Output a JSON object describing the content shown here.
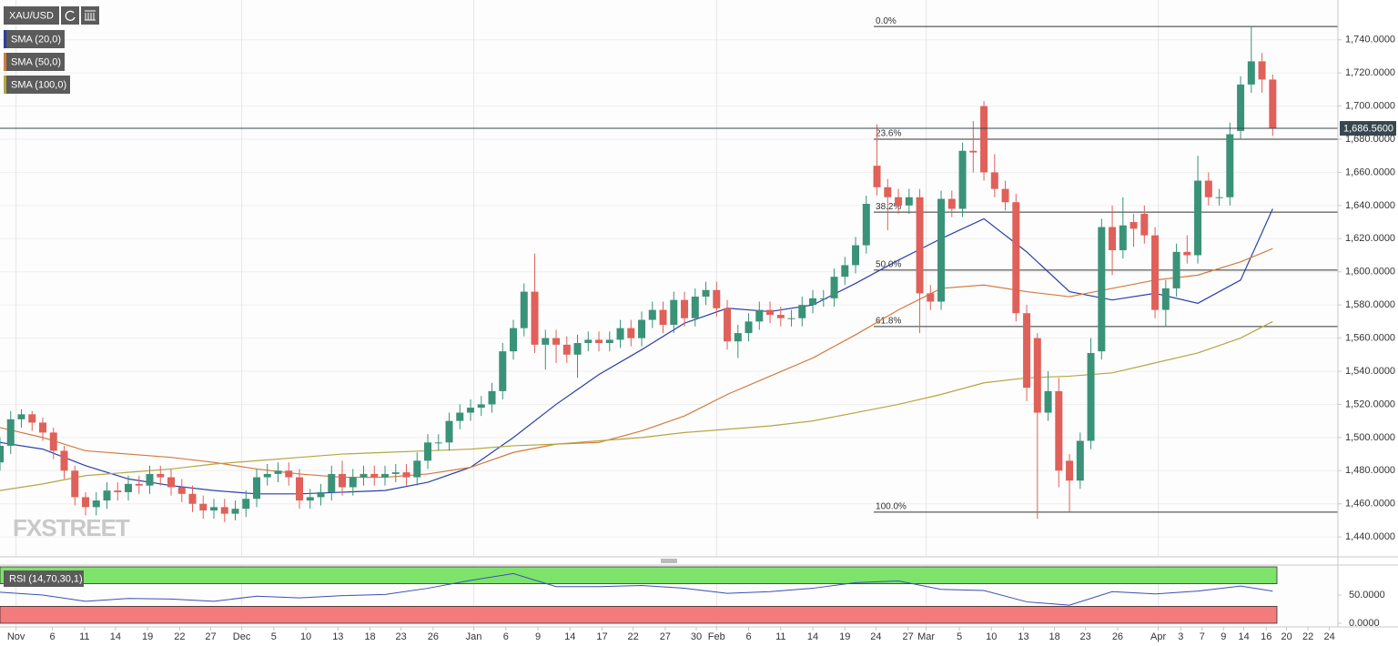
{
  "chart_data": {
    "type": "candlestick",
    "symbol": "XAU/USD",
    "up_color": "#3a9278",
    "down_color": "#e0605a",
    "ohlc": [
      [
        1485,
        1500,
        1480,
        1495
      ],
      [
        1495,
        1516,
        1490,
        1511
      ],
      [
        1511,
        1517,
        1506,
        1514
      ],
      [
        1514,
        1516,
        1504,
        1509
      ],
      [
        1509,
        1512,
        1498,
        1503
      ],
      [
        1503,
        1506,
        1487,
        1492
      ],
      [
        1492,
        1495,
        1475,
        1480
      ],
      [
        1480,
        1483,
        1459,
        1464
      ],
      [
        1464,
        1467,
        1453,
        1458
      ],
      [
        1458,
        1467,
        1453,
        1462
      ],
      [
        1462,
        1473,
        1457,
        1468
      ],
      [
        1468,
        1473,
        1462,
        1467
      ],
      [
        1467,
        1477,
        1462,
        1472
      ],
      [
        1472,
        1477,
        1466,
        1471
      ],
      [
        1471,
        1483,
        1466,
        1478
      ],
      [
        1478,
        1483,
        1471,
        1476
      ],
      [
        1476,
        1481,
        1465,
        1470
      ],
      [
        1470,
        1475,
        1461,
        1466
      ],
      [
        1466,
        1471,
        1455,
        1460
      ],
      [
        1460,
        1465,
        1451,
        1456
      ],
      [
        1456,
        1463,
        1451,
        1458
      ],
      [
        1458,
        1463,
        1449,
        1454
      ],
      [
        1454,
        1462,
        1450,
        1457
      ],
      [
        1457,
        1468,
        1452,
        1463
      ],
      [
        1463,
        1481,
        1458,
        1476
      ],
      [
        1476,
        1484,
        1471,
        1478
      ],
      [
        1478,
        1485,
        1473,
        1480
      ],
      [
        1480,
        1485,
        1471,
        1476
      ],
      [
        1476,
        1481,
        1457,
        1462
      ],
      [
        1462,
        1469,
        1457,
        1464
      ],
      [
        1464,
        1472,
        1459,
        1467
      ],
      [
        1467,
        1483,
        1462,
        1478
      ],
      [
        1478,
        1486,
        1465,
        1470
      ],
      [
        1470,
        1481,
        1465,
        1476
      ],
      [
        1476,
        1483,
        1471,
        1478
      ],
      [
        1478,
        1483,
        1471,
        1476
      ],
      [
        1476,
        1483,
        1471,
        1478
      ],
      [
        1478,
        1484,
        1473,
        1479
      ],
      [
        1479,
        1484,
        1471,
        1476
      ],
      [
        1476,
        1491,
        1471,
        1486
      ],
      [
        1486,
        1502,
        1481,
        1497
      ],
      [
        1497,
        1502,
        1492,
        1497
      ],
      [
        1497,
        1515,
        1492,
        1510
      ],
      [
        1510,
        1520,
        1505,
        1515
      ],
      [
        1515,
        1523,
        1510,
        1518
      ],
      [
        1518,
        1525,
        1513,
        1520
      ],
      [
        1520,
        1533,
        1515,
        1528
      ],
      [
        1528,
        1557,
        1523,
        1552
      ],
      [
        1552,
        1571,
        1547,
        1566
      ],
      [
        1566,
        1593,
        1561,
        1588
      ],
      [
        1588,
        1611,
        1551,
        1556
      ],
      [
        1556,
        1565,
        1541,
        1560
      ],
      [
        1560,
        1565,
        1545,
        1556
      ],
      [
        1556,
        1561,
        1545,
        1550
      ],
      [
        1550,
        1562,
        1536,
        1557
      ],
      [
        1557,
        1564,
        1552,
        1559
      ],
      [
        1559,
        1564,
        1552,
        1557
      ],
      [
        1557,
        1564,
        1552,
        1559
      ],
      [
        1559,
        1571,
        1554,
        1566
      ],
      [
        1566,
        1571,
        1555,
        1560
      ],
      [
        1560,
        1576,
        1555,
        1571
      ],
      [
        1571,
        1582,
        1566,
        1577
      ],
      [
        1577,
        1582,
        1563,
        1568
      ],
      [
        1568,
        1588,
        1563,
        1583
      ],
      [
        1583,
        1588,
        1567,
        1572
      ],
      [
        1572,
        1590,
        1567,
        1585
      ],
      [
        1585,
        1594,
        1580,
        1589
      ],
      [
        1589,
        1594,
        1573,
        1578
      ],
      [
        1578,
        1583,
        1553,
        1558
      ],
      [
        1558,
        1568,
        1548,
        1563
      ],
      [
        1563,
        1575,
        1558,
        1570
      ],
      [
        1570,
        1582,
        1565,
        1577
      ],
      [
        1577,
        1582,
        1569,
        1574
      ],
      [
        1574,
        1579,
        1567,
        1572
      ],
      [
        1572,
        1577,
        1567,
        1572
      ],
      [
        1572,
        1585,
        1567,
        1580
      ],
      [
        1580,
        1589,
        1575,
        1584
      ],
      [
        1584,
        1589,
        1579,
        1584
      ],
      [
        1584,
        1602,
        1579,
        1597
      ],
      [
        1597,
        1609,
        1592,
        1604
      ],
      [
        1604,
        1621,
        1599,
        1616
      ],
      [
        1616,
        1646,
        1611,
        1641
      ],
      [
        1664,
        1689,
        1646,
        1651
      ],
      [
        1651,
        1656,
        1625,
        1645
      ],
      [
        1645,
        1650,
        1635,
        1640
      ],
      [
        1640,
        1650,
        1635,
        1645
      ],
      [
        1645,
        1650,
        1563,
        1587
      ],
      [
        1587,
        1592,
        1577,
        1582
      ],
      [
        1582,
        1649,
        1577,
        1644
      ],
      [
        1644,
        1649,
        1633,
        1638
      ],
      [
        1638,
        1678,
        1633,
        1673
      ],
      [
        1673,
        1691,
        1660,
        1672
      ],
      [
        1700,
        1703,
        1655,
        1660
      ],
      [
        1660,
        1671,
        1645,
        1650
      ],
      [
        1650,
        1655,
        1637,
        1642
      ],
      [
        1642,
        1647,
        1570,
        1575
      ],
      [
        1575,
        1580,
        1522,
        1530
      ],
      [
        1560,
        1563,
        1451,
        1515
      ],
      [
        1515,
        1540,
        1510,
        1528
      ],
      [
        1528,
        1536,
        1470,
        1480
      ],
      [
        1486,
        1490,
        1455,
        1474
      ],
      [
        1474,
        1503,
        1469,
        1498
      ],
      [
        1498,
        1560,
        1493,
        1551
      ],
      [
        1552,
        1632,
        1547,
        1627
      ],
      [
        1627,
        1640,
        1598,
        1613
      ],
      [
        1613,
        1645,
        1608,
        1628
      ],
      [
        1630,
        1635,
        1615,
        1626
      ],
      [
        1635,
        1640,
        1617,
        1622
      ],
      [
        1622,
        1627,
        1572,
        1577
      ],
      [
        1577,
        1595,
        1567,
        1590
      ],
      [
        1590,
        1617,
        1585,
        1612
      ],
      [
        1612,
        1622,
        1605,
        1610
      ],
      [
        1610,
        1670,
        1605,
        1655
      ],
      [
        1655,
        1660,
        1640,
        1645
      ],
      [
        1645,
        1650,
        1640,
        1645
      ],
      [
        1645,
        1690,
        1640,
        1683
      ],
      [
        1685,
        1718,
        1680,
        1713
      ],
      [
        1713,
        1748,
        1708,
        1727
      ],
      [
        1727,
        1732,
        1708,
        1716
      ],
      [
        1716,
        1719,
        1682,
        1686.56
      ]
    ],
    "xlim": [
      0,
      125.1
    ],
    "xticks": [
      {
        "value": 1.5,
        "label": "Nov"
      },
      {
        "value": 4.9,
        "label": "6"
      },
      {
        "value": 7.9,
        "label": "11"
      },
      {
        "value": 10.8,
        "label": "14"
      },
      {
        "value": 13.8,
        "label": "19"
      },
      {
        "value": 16.8,
        "label": "22"
      },
      {
        "value": 19.7,
        "label": "27"
      },
      {
        "value": 22.6,
        "label": "Dec"
      },
      {
        "value": 25.6,
        "label": "5"
      },
      {
        "value": 28.6,
        "label": "10"
      },
      {
        "value": 31.6,
        "label": "13"
      },
      {
        "value": 34.6,
        "label": "18"
      },
      {
        "value": 37.5,
        "label": "23"
      },
      {
        "value": 40.5,
        "label": "26"
      },
      {
        "value": 44.3,
        "label": "Jan"
      },
      {
        "value": 47.3,
        "label": "6"
      },
      {
        "value": 50.3,
        "label": "9"
      },
      {
        "value": 53.3,
        "label": "14"
      },
      {
        "value": 56.3,
        "label": "17"
      },
      {
        "value": 59.2,
        "label": "22"
      },
      {
        "value": 62.2,
        "label": "27"
      },
      {
        "value": 65.1,
        "label": "30"
      },
      {
        "value": 67.0,
        "label": "Feb"
      },
      {
        "value": 70.0,
        "label": "6"
      },
      {
        "value": 73.0,
        "label": "11"
      },
      {
        "value": 76.0,
        "label": "14"
      },
      {
        "value": 79.0,
        "label": "19"
      },
      {
        "value": 81.9,
        "label": "24"
      },
      {
        "value": 84.9,
        "label": "27"
      },
      {
        "value": 86.6,
        "label": "Mar"
      },
      {
        "value": 89.7,
        "label": "5"
      },
      {
        "value": 92.7,
        "label": "10"
      },
      {
        "value": 95.7,
        "label": "13"
      },
      {
        "value": 98.6,
        "label": "18"
      },
      {
        "value": 101.5,
        "label": "23"
      },
      {
        "value": 104.5,
        "label": "26"
      },
      {
        "value": 108.3,
        "label": "Apr"
      },
      {
        "value": 110.4,
        "label": "3"
      },
      {
        "value": 112.4,
        "label": "7"
      },
      {
        "value": 114.4,
        "label": "9"
      },
      {
        "value": 116.3,
        "label": "14"
      },
      {
        "value": 118.4,
        "label": "16"
      },
      {
        "value": 120.3,
        "label": "20"
      },
      {
        "value": 122.3,
        "label": "22"
      },
      {
        "value": 124.3,
        "label": "24"
      }
    ],
    "ylim": [
      1428,
      1764
    ],
    "yticks": [
      {
        "value": 1440,
        "label": "1,440.0000"
      },
      {
        "value": 1460,
        "label": "1,460.0000"
      },
      {
        "value": 1480,
        "label": "1,480.0000"
      },
      {
        "value": 1500,
        "label": "1,500.0000"
      },
      {
        "value": 1520,
        "label": "1,520.0000"
      },
      {
        "value": 1540,
        "label": "1,540.0000"
      },
      {
        "value": 1560,
        "label": "1,560.0000"
      },
      {
        "value": 1580,
        "label": "1,580.0000"
      },
      {
        "value": 1600,
        "label": "1,600.0000"
      },
      {
        "value": 1620,
        "label": "1,620.0000"
      },
      {
        "value": 1640,
        "label": "1,640.0000"
      },
      {
        "value": 1660,
        "label": "1,660.0000"
      },
      {
        "value": 1680,
        "label": "1,680.0000"
      },
      {
        "value": 1700,
        "label": "1,700.0000"
      },
      {
        "value": 1720,
        "label": "1,720.0000"
      },
      {
        "value": 1740,
        "label": "1,740.0000"
      }
    ],
    "grid": true,
    "series": [
      {
        "name": "SMA (20,0)",
        "color": "#2b3fa8",
        "x": [
          0,
          4,
          8,
          12,
          16,
          20,
          24,
          28,
          32,
          36,
          40,
          44,
          48,
          52,
          56,
          60,
          64,
          68,
          72,
          76,
          80,
          84,
          88,
          92,
          96,
          100,
          104,
          108,
          112,
          116,
          119
        ],
        "values": [
          1497,
          1493,
          1483,
          1475,
          1471,
          1468,
          1466,
          1466,
          1467,
          1468,
          1473,
          1482,
          1500,
          1520,
          1538,
          1553,
          1569,
          1578,
          1576,
          1580,
          1593,
          1607,
          1620,
          1632,
          1612,
          1588,
          1583,
          1587,
          1581,
          1595,
          1638
        ]
      },
      {
        "name": "SMA (50,0)",
        "color": "#d47a3c",
        "x": [
          0,
          4,
          8,
          12,
          16,
          20,
          24,
          28,
          32,
          36,
          40,
          44,
          48,
          52,
          56,
          60,
          64,
          68,
          72,
          76,
          80,
          84,
          88,
          92,
          96,
          100,
          104,
          108,
          112,
          116,
          119
        ],
        "values": [
          1506,
          1500,
          1492,
          1490,
          1488,
          1485,
          1481,
          1478,
          1476,
          1476,
          1478,
          1482,
          1491,
          1496,
          1497,
          1504,
          1513,
          1526,
          1537,
          1548,
          1562,
          1577,
          1590,
          1592,
          1588,
          1585,
          1590,
          1595,
          1598,
          1606,
          1614
        ]
      },
      {
        "name": "SMA (100,0)",
        "color": "#b5a642",
        "x": [
          0,
          4,
          8,
          12,
          16,
          20,
          24,
          28,
          32,
          36,
          40,
          44,
          48,
          52,
          56,
          60,
          64,
          68,
          72,
          76,
          80,
          84,
          88,
          92,
          96,
          100,
          104,
          108,
          112,
          116,
          119
        ],
        "values": [
          1468,
          1472,
          1477,
          1479,
          1481,
          1484,
          1486,
          1488,
          1490,
          1491,
          1492,
          1493,
          1495,
          1496,
          1498,
          1500,
          1503,
          1505,
          1507,
          1510,
          1515,
          1520,
          1526,
          1533,
          1536,
          1537,
          1539,
          1545,
          1551,
          1560,
          1570
        ]
      }
    ],
    "fibonacci": [
      {
        "label": "0.0%",
        "value": 1748
      },
      {
        "label": "23.6%",
        "value": 1680
      },
      {
        "label": "38.2%",
        "value": 1636
      },
      {
        "label": "50.0%",
        "value": 1601
      },
      {
        "label": "61.8%",
        "value": 1567
      },
      {
        "label": "100.0%",
        "value": 1455
      }
    ],
    "fib_start": 81.7,
    "last_price": {
      "value": 1686.56,
      "label": "1,686.5600"
    },
    "watermark": "FXSTREET",
    "rsi": {
      "name": "RSI (14,70,30,1)",
      "color": "#3c4fb5",
      "x": [
        0,
        4,
        8,
        12,
        16,
        20,
        24,
        28,
        32,
        36,
        40,
        44,
        48,
        52,
        56,
        60,
        64,
        68,
        72,
        76,
        80,
        84,
        88,
        92,
        96,
        100,
        104,
        108,
        112,
        116,
        119
      ],
      "values": [
        55,
        50,
        39,
        44,
        43,
        39,
        48,
        45,
        49,
        51,
        62,
        76,
        88,
        65,
        65,
        67,
        62,
        53,
        56,
        62,
        72,
        75,
        60,
        58,
        38,
        32,
        56,
        52,
        57,
        66,
        57
      ],
      "ylim": [
        0,
        100
      ],
      "yticks": [
        {
          "value": 50,
          "label": "50.0000"
        },
        {
          "value": 0,
          "label": "0.0000"
        }
      ],
      "overbought": 70,
      "oversold": 30,
      "overbought_color": "#7ee36b",
      "oversold_color": "#f47b7b"
    }
  }
}
